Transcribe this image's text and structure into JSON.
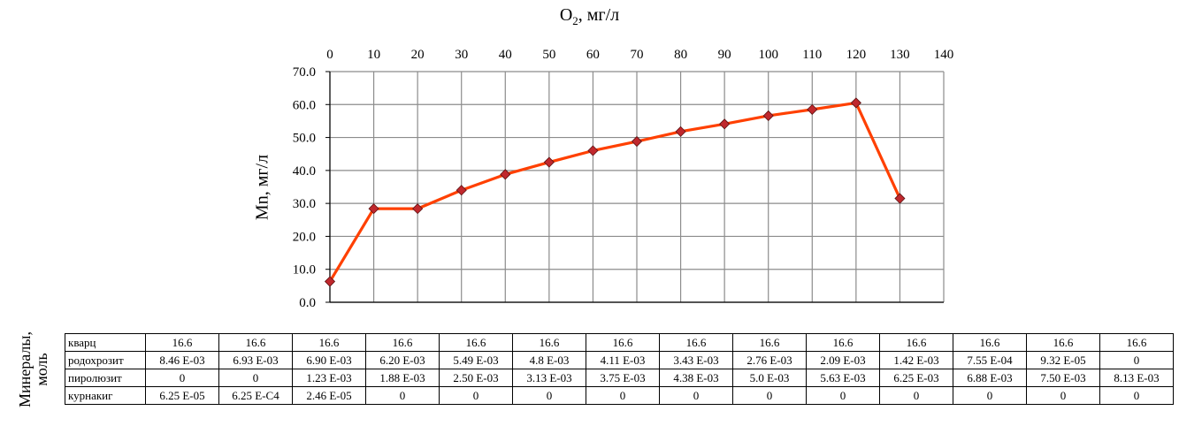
{
  "chart_data": {
    "type": "line",
    "xlabel_main": "O",
    "xlabel_sub": "2",
    "xlabel_rest": ", мг/л",
    "ylabel": "Mn, мг/л",
    "x_ticks": [
      "0",
      "10",
      "20",
      "30",
      "40",
      "50",
      "60",
      "70",
      "80",
      "90",
      "100",
      "110",
      "120",
      "130",
      "140"
    ],
    "y_ticks": [
      "0.0",
      "10.0",
      "20.0",
      "30.0",
      "40.0",
      "50.0",
      "60.0",
      "70.0"
    ],
    "xlim": [
      0,
      140
    ],
    "ylim": [
      0,
      70
    ],
    "grid": true,
    "line_color": "#ff4000",
    "marker_color": "#c0282d",
    "series": [
      {
        "x": [
          0,
          10,
          20,
          30,
          40,
          50,
          60,
          70,
          80,
          90,
          100,
          110,
          120,
          130
        ],
        "values": [
          6.3,
          28.4,
          28.4,
          34.0,
          38.8,
          42.5,
          46.0,
          48.8,
          51.8,
          54.1,
          56.6,
          58.5,
          60.5,
          31.5
        ]
      }
    ]
  },
  "table": {
    "title_line1": "Минералы,",
    "title_line2": "моль",
    "rows": [
      {
        "name": "кварц",
        "values": [
          "16.6",
          "16.6",
          "16.6",
          "16.6",
          "16.6",
          "16.6",
          "16.6",
          "16.6",
          "16.6",
          "16.6",
          "16.6",
          "16.6",
          "16.6",
          "16.6"
        ]
      },
      {
        "name": "родохрозит",
        "values": [
          "8.46 E-03",
          "6.93 E-03",
          "6.90 E-03",
          "6.20 E-03",
          "5.49 E-03",
          "4.8 E-03",
          "4.11 E-03",
          "3.43 E-03",
          "2.76 E-03",
          "2.09 E-03",
          "1.42 E-03",
          "7.55 E-04",
          "9.32 E-05",
          "0"
        ]
      },
      {
        "name": "пиролюзит",
        "values": [
          "0",
          "0",
          "1.23 E-03",
          "1.88 E-03",
          "2.50 E-03",
          "3.13 E-03",
          "3.75 E-03",
          "4.38 E-03",
          "5.0 E-03",
          "5.63 E-03",
          "6.25 E-03",
          "6.88 E-03",
          "7.50 E-03",
          "8.13 E-03"
        ]
      },
      {
        "name": "курнакиг",
        "values": [
          "6.25 E-05",
          "6.25 E-C4",
          "2.46 E-05",
          "0",
          "0",
          "0",
          "0",
          "0",
          "0",
          "0",
          "0",
          "0",
          "0",
          "0"
        ]
      }
    ]
  }
}
